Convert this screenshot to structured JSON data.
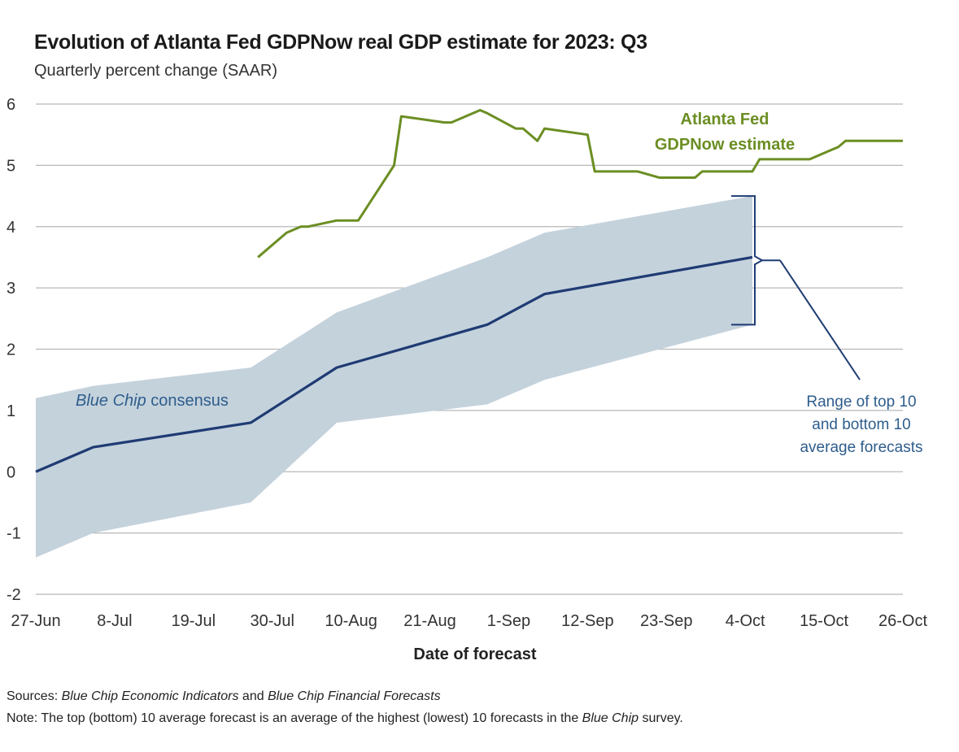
{
  "header": {
    "title": "Evolution of Atlanta Fed GDPNow real GDP estimate for 2023: Q3",
    "subtitle": "Quarterly percent change (SAAR)"
  },
  "footer": {
    "sources_label": "Sources:",
    "sources_part1": "Blue Chip Economic Indicators",
    "sources_and": " and ",
    "sources_part2": "Blue Chip Financial Forecasts",
    "note_label": "Note:",
    "note_text": " The top (bottom) 10 average forecast is an average of the highest (lowest) 10 forecasts in the ",
    "note_italic": "Blue Chip",
    "note_end": " survey."
  },
  "chart_data": {
    "type": "line",
    "title": "Evolution of Atlanta Fed GDPNow real GDP estimate for 2023: Q3",
    "xlabel": "Date of forecast",
    "ylabel": "Quarterly percent change (SAAR)",
    "ylim": [
      -2,
      6
    ],
    "yticks": [
      "6",
      "5",
      "4",
      "3",
      "2",
      "1",
      "0",
      "-1",
      "-2"
    ],
    "ytick_values": [
      6,
      5,
      4,
      3,
      2,
      1,
      0,
      -1,
      -2
    ],
    "xlim_days": [
      0,
      121
    ],
    "xticks": [
      "27-Jun",
      "8-Jul",
      "19-Jul",
      "30-Jul",
      "10-Aug",
      "21-Aug",
      "1-Sep",
      "12-Sep",
      "23-Sep",
      "4-Oct",
      "15-Oct",
      "26-Oct"
    ],
    "xtick_days": [
      0,
      11,
      22,
      33,
      44,
      55,
      66,
      77,
      88,
      99,
      110,
      121
    ],
    "grid": true,
    "series": [
      {
        "name": "Atlanta Fed GDPNow estimate",
        "color": "#6b8e23",
        "x_days": [
          31,
          35,
          37,
          38,
          42,
          45,
          50,
          51,
          57,
          58,
          62,
          63,
          67,
          68,
          70,
          71,
          77,
          78,
          79,
          80,
          84,
          87,
          92,
          93,
          99,
          100,
          101,
          107,
          108,
          110,
          112,
          113,
          121
        ],
        "values": [
          3.5,
          3.9,
          4.0,
          4.0,
          4.1,
          4.1,
          5.0,
          5.8,
          5.7,
          5.7,
          5.9,
          5.85,
          5.6,
          5.6,
          5.4,
          5.6,
          5.5,
          4.9,
          4.9,
          4.9,
          4.9,
          4.8,
          4.8,
          4.9,
          4.9,
          4.9,
          5.1,
          5.1,
          5.1,
          5.2,
          5.3,
          5.4,
          5.4
        ]
      },
      {
        "name": "Blue Chip consensus",
        "color": "#1f3b73",
        "x_days": [
          0,
          8,
          30,
          42,
          63,
          71,
          100
        ],
        "values": [
          0.0,
          0.4,
          0.8,
          1.7,
          2.4,
          2.9,
          3.5
        ]
      }
    ],
    "band": {
      "name": "Range of top 10 and bottom 10 average forecasts",
      "color": "#c4d2dc",
      "x_days": [
        0,
        8,
        30,
        42,
        63,
        71,
        100
      ],
      "upper": [
        1.2,
        1.4,
        1.7,
        2.6,
        3.5,
        3.9,
        4.5
      ],
      "lower": [
        -1.4,
        -1.0,
        -0.5,
        0.8,
        1.1,
        1.5,
        2.4
      ]
    },
    "annotations": {
      "gdpnow_line1": "Atlanta Fed",
      "gdpnow_line2": "GDPNow estimate",
      "bluechip_italic": "Blue Chip",
      "bluechip_rest": " consensus",
      "range_line1": "Range of top 10",
      "range_line2": "and bottom 10",
      "range_line3": "average forecasts"
    },
    "colors": {
      "grid": "#b8b8b8",
      "gdpnow_label": "#6b8e23",
      "bluechip_label": "#2e5d8c",
      "range_label": "#2e5d8c"
    }
  }
}
